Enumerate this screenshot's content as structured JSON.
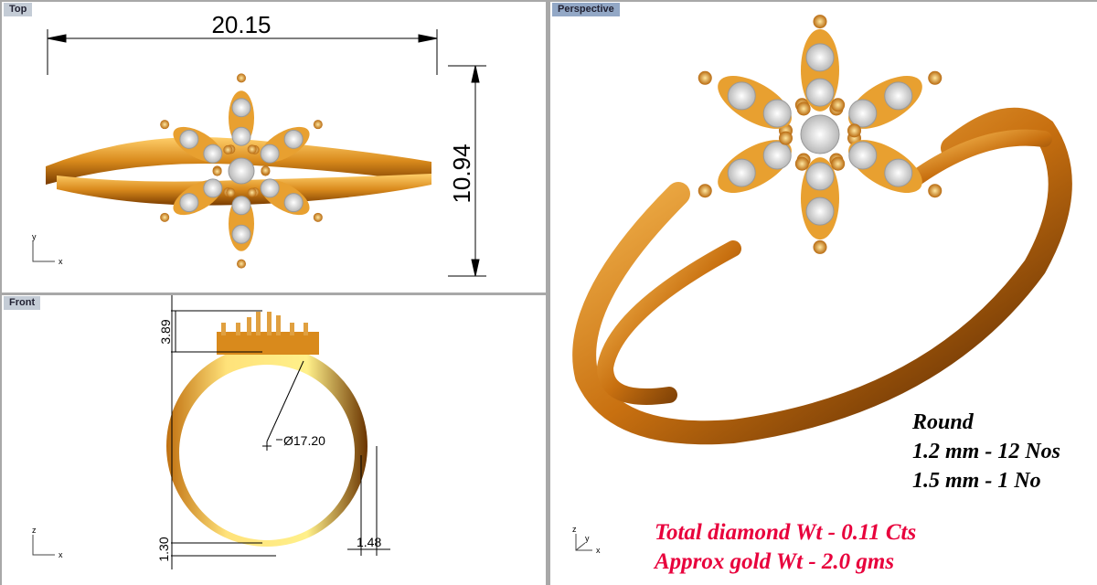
{
  "viewports": {
    "top": {
      "label": "Top",
      "dim_width": "20.15",
      "dim_height": "10.94",
      "axis_y": "y",
      "axis_x": "x"
    },
    "front": {
      "label": "Front",
      "dim_top": "3.89",
      "dim_diameter": "Ø17.20",
      "dim_bottom": "1.30",
      "dim_side": "1.48",
      "axis_z": "z",
      "axis_x": "x"
    },
    "perspective": {
      "label": "Perspective",
      "axis_z": "z",
      "axis_y": "y",
      "axis_x": "x"
    }
  },
  "specs": {
    "shape": "Round",
    "line1": "1.2 mm - 12 Nos",
    "line2": "1.5 mm - 1 No",
    "diamond_wt": "Total diamond Wt - 0.11 Cts",
    "gold_wt": "Approx gold Wt - 2.0 gms",
    "highlight_color": "#e8003c",
    "gold_color": "#d98a1c"
  }
}
